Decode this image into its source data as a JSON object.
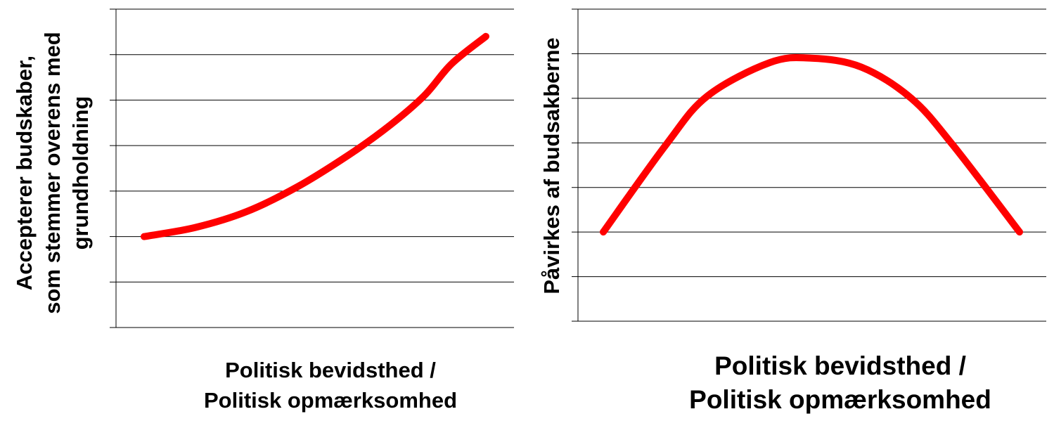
{
  "chart_data": [
    {
      "type": "line",
      "title": "",
      "xlabel_lines": [
        "Politisk bevidsthed /",
        "Politisk opmærksomhed"
      ],
      "ylabel_lines": [
        "Accepterer  budskaber,",
        "som stemmer overens med",
        "grundholdning"
      ],
      "xlim": [
        0,
        1
      ],
      "ylim": [
        0,
        7
      ],
      "grid": true,
      "line_color": "#ff0000",
      "series": [
        {
          "x": [
            0,
            0.15,
            0.3,
            0.45,
            0.6,
            0.72,
            0.82,
            0.9,
            1.0
          ],
          "values": [
            2.0,
            2.2,
            2.55,
            3.1,
            3.8,
            4.45,
            5.1,
            5.8,
            6.4
          ]
        }
      ]
    },
    {
      "type": "line",
      "title": "",
      "xlabel_lines": [
        "Politisk bevidsthed /",
        "Politisk opmærksomhed"
      ],
      "ylabel_lines": [
        "Påvirkes af budsakberne"
      ],
      "xlim": [
        0,
        1
      ],
      "ylim": [
        0,
        7
      ],
      "grid": true,
      "line_color": "#ff0000",
      "series": [
        {
          "x": [
            0,
            0.15,
            0.25,
            0.4,
            0.5,
            0.62,
            0.74,
            0.84,
            1.0
          ],
          "values": [
            2.0,
            3.95,
            5.05,
            5.8,
            5.9,
            5.7,
            5.0,
            3.95,
            2.0
          ]
        }
      ]
    }
  ]
}
